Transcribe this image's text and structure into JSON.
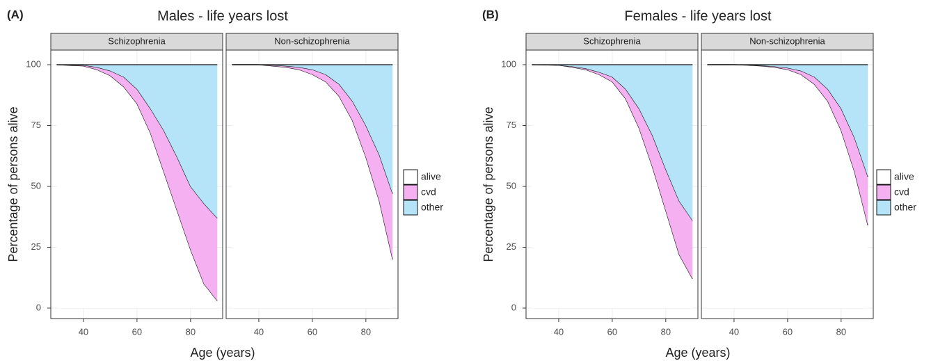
{
  "chart_data": [
    {
      "type": "stacked_area",
      "panel": "(A)",
      "title": "Males - life years lost",
      "x_label": "Age (years)",
      "y_label": "Percentage of persons alive",
      "facets": [
        "Schizophrenia",
        "Non-schizophrenia"
      ],
      "x": [
        30,
        40,
        45,
        50,
        55,
        60,
        65,
        70,
        75,
        80,
        85,
        90
      ],
      "series": [
        {
          "name": "alive",
          "color": "#ffffff",
          "values": [
            [
              100,
              99.5,
              98,
              95.5,
              91,
              84,
              72,
              56,
              40,
              24,
              10,
              3
            ],
            [
              100,
              100,
              99.5,
              99,
              98,
              96,
              93,
              87,
              77,
              62,
              44,
              20
            ]
          ]
        },
        {
          "name": "cvd",
          "color": "#f4b0f0",
          "values": [
            [
              0,
              0.3,
              1,
              2,
              4,
              6,
              10,
              17,
              22,
              26,
              33,
              34
            ],
            [
              0,
              0,
              0.3,
              0.5,
              1,
              2,
              3,
              5,
              8,
              13,
              19,
              27
            ]
          ]
        },
        {
          "name": "other",
          "color": "#b5e3f8",
          "values": [
            [
              0,
              0.2,
              1,
              2.5,
              5,
              10,
              18,
              27,
              38,
              50,
              57,
              63
            ],
            [
              0,
              0,
              0.2,
              0.5,
              1,
              2,
              4,
              8,
              15,
              25,
              37,
              53
            ]
          ]
        }
      ],
      "xlim": [
        27.8,
        92
      ],
      "xticks": [
        40,
        60,
        80
      ],
      "ylim": [
        -4.3,
        106
      ],
      "yticks": [
        0,
        25,
        50,
        75,
        100
      ],
      "grid": true,
      "legend": "right"
    },
    {
      "type": "stacked_area",
      "panel": "(B)",
      "title": "Females - life years lost",
      "x_label": "Age (years)",
      "y_label": "Percentage of persons alive",
      "facets": [
        "Schizophrenia",
        "Non-schizophrenia"
      ],
      "x": [
        30,
        40,
        45,
        50,
        55,
        60,
        65,
        70,
        75,
        80,
        85,
        90
      ],
      "series": [
        {
          "name": "alive",
          "color": "#ffffff",
          "values": [
            [
              100,
              99.8,
              99,
              98,
              96,
              93,
              86,
              74,
              58,
              40,
              22,
              12
            ],
            [
              100,
              100,
              99.8,
              99.5,
              99,
              98,
              96,
              92,
              85,
              73,
              56,
              34
            ]
          ]
        },
        {
          "name": "cvd",
          "color": "#f4b0f0",
          "values": [
            [
              0,
              0,
              0.3,
              0.5,
              1,
              2,
              4,
              8,
              13,
              17,
              22,
              24
            ],
            [
              0,
              0,
              0.1,
              0.2,
              0.3,
              0.7,
              1.5,
              3,
              5,
              9,
              14,
              20
            ]
          ]
        },
        {
          "name": "other",
          "color": "#b5e3f8",
          "values": [
            [
              0,
              0.2,
              0.7,
              1.5,
              3,
              5,
              10,
              18,
              29,
              43,
              56,
              64
            ],
            [
              0,
              0,
              0.1,
              0.3,
              0.7,
              1.3,
              2.5,
              5,
              10,
              18,
              30,
              46
            ]
          ]
        }
      ],
      "xlim": [
        27.8,
        92
      ],
      "xticks": [
        40,
        60,
        80
      ],
      "ylim": [
        -4.3,
        106
      ],
      "yticks": [
        0,
        25,
        50,
        75,
        100
      ],
      "grid": true,
      "legend": "right"
    }
  ]
}
